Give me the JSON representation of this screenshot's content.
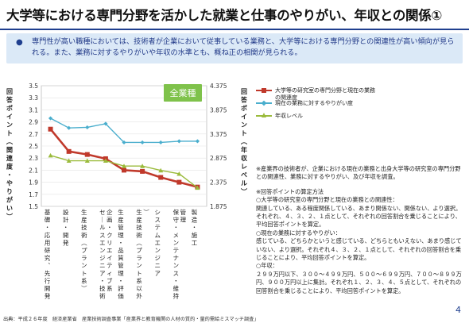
{
  "page": {
    "title": "大学等における専門分野を活かした就業と仕事のやりがい、年収との関係①",
    "summary_bullet": "●",
    "summary": "専門性が高い職種においては、技術者が企業において従事している業務と、大学等における専門分野との関連性が高い傾向が見られる。また、業務に対するやりがいや年収の水準とも、概ね正の相関が見られる。",
    "source": "出典：平成２６年度　経済産業省　産業技術調査事業「産業界と教育機関の人材の質的・量的需給ミスマッチ調査」",
    "page_number": "4"
  },
  "notes": [
    "※産業界の技術者が、企業における現在の業務と出身大学等の研究室の専門分野との関連性、業務に対するやりがい、及び年収を調査。",
    "",
    "※回答ポイントの算定方法",
    "○大学等の研究室の専門分野と現在の業務との関連性：",
    "関連している、ある程度関係している、あまり関係ない、関係ない、より選択。それぞれ、４、３、２、１点として、それぞれの回答割合を乗じることにより、平均回答ポイントを算定。",
    "○現在の業務に対するやりがい：",
    "感じている、どちらかというと感じている、どちらともいえない、あまり感じていない、より選択。それぞれ４、３、２、１点として、それぞれの回答割合を乗じることにより、平均回答ポイントを算定。",
    "○年収：",
    "２９９万円以下、３００～４９９万円、５００～６９９万円、７００～８９９万円、９００万円以上に集計。それぞれ１、２、３、４、５点として、それぞれの回答割合を乗じることにより、平均回答ポイントを算定。"
  ],
  "chart_data": {
    "type": "line",
    "badge": "全業種",
    "categories": [
      "基礎・応用研究、先行開発",
      "設計・開発",
      "生産技術（プラント系）",
      "セールスエンジニア・技術企画・クリエイティブ系",
      "生産管理・品質管理・評価",
      "生産技術（プラント系以外）",
      "システムエンジニア",
      "保守・メンテナンス・維持管理",
      "製造・施工"
    ],
    "ylabel_left": "回答ポイント（関連度・やりがい）",
    "ylabel_right": "回答ポイント（年収レベル）",
    "ylim_left": [
      1.5,
      3.5
    ],
    "yticks_left": [
      "3.5",
      "3.3",
      "3.1",
      "2.9",
      "2.7",
      "2.5",
      "2.3",
      "2.1",
      "1.9",
      "1.7",
      "1.5"
    ],
    "ylim_right": [
      1.875,
      4.375
    ],
    "yticks_right": [
      "4.375",
      "3.875",
      "3.375",
      "2.875",
      "2.375",
      "1.875"
    ],
    "grid": true,
    "legend_position": "right",
    "series": [
      {
        "name": "大学等の研究室の専門分野と現在の業務の関連度",
        "axis": "left",
        "color": "#c0392b",
        "marker": "square",
        "values": [
          2.78,
          2.41,
          2.36,
          2.29,
          2.1,
          2.08,
          1.98,
          1.9,
          1.82
        ]
      },
      {
        "name": "現在の業務に対するやりがい度",
        "axis": "left",
        "color": "#4aaecd",
        "marker": "diamond",
        "values": [
          2.96,
          2.8,
          2.81,
          2.87,
          2.56,
          2.56,
          2.56,
          2.58,
          2.58
        ]
      },
      {
        "name": "年収レベル",
        "axis": "right",
        "color": "#9bbb3c",
        "marker": "triangle",
        "values": [
          2.93,
          2.82,
          2.82,
          2.82,
          2.71,
          2.71,
          2.62,
          2.55,
          2.26
        ]
      }
    ]
  }
}
